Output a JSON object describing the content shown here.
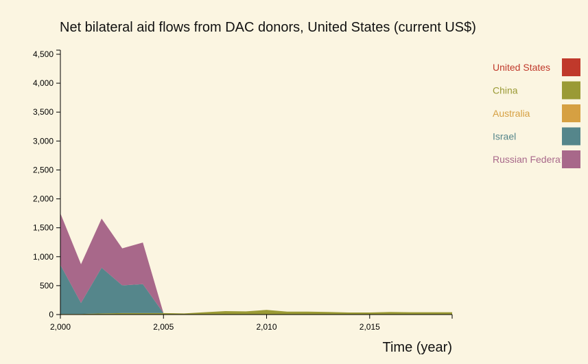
{
  "chart_data": {
    "type": "area",
    "stacked": true,
    "title": "Net bilateral aid flows from DAC donors, United States (current US$)",
    "xlabel": "Time (year)",
    "ylabel": "",
    "xlim": [
      2000,
      2019
    ],
    "ylim": [
      0,
      4500
    ],
    "x_ticks": [
      2000,
      2005,
      2010,
      2015
    ],
    "x_tick_labels": [
      "2,000",
      "2,005",
      "2,010",
      "2,015"
    ],
    "y_ticks": [
      0,
      500,
      1000,
      1500,
      2000,
      2500,
      3000,
      3500,
      4000,
      4500
    ],
    "y_tick_labels": [
      "0",
      "500",
      "1,000",
      "1,500",
      "2,000",
      "2,500",
      "3,000",
      "3,500",
      "4,000",
      "4,500"
    ],
    "grid": false,
    "legend_position": "right",
    "x": [
      2000,
      2001,
      2002,
      2003,
      2004,
      2005,
      2006,
      2007,
      2008,
      2009,
      2010,
      2011,
      2012,
      2013,
      2014,
      2015,
      2016,
      2017,
      2018,
      2019
    ],
    "series": [
      {
        "name": "United States",
        "color": "#c0392b",
        "values": [
          0,
          0,
          0,
          0,
          0,
          0,
          0,
          0,
          0,
          0,
          0,
          0,
          0,
          0,
          0,
          0,
          0,
          0,
          0,
          0
        ]
      },
      {
        "name": "China",
        "color": "#9a9a35",
        "values": [
          10,
          10,
          20,
          25,
          25,
          25,
          20,
          40,
          60,
          55,
          80,
          50,
          50,
          45,
          35,
          35,
          45,
          40,
          40,
          40
        ]
      },
      {
        "name": "Australia",
        "color": "#d6a042",
        "values": [
          0,
          0,
          0,
          0,
          0,
          0,
          0,
          0,
          0,
          0,
          0,
          0,
          0,
          0,
          0,
          0,
          0,
          0,
          0,
          0
        ]
      },
      {
        "name": "Israel",
        "color": "#55868b",
        "values": [
          850,
          190,
          790,
          480,
          500,
          0,
          0,
          0,
          0,
          0,
          0,
          0,
          0,
          0,
          0,
          0,
          0,
          0,
          0,
          0
        ]
      },
      {
        "name": "Russian Federation",
        "color": "#a8688a",
        "values": [
          890,
          670,
          850,
          640,
          720,
          0,
          0,
          0,
          0,
          0,
          0,
          0,
          0,
          0,
          0,
          0,
          0,
          0,
          0,
          0
        ]
      }
    ]
  }
}
